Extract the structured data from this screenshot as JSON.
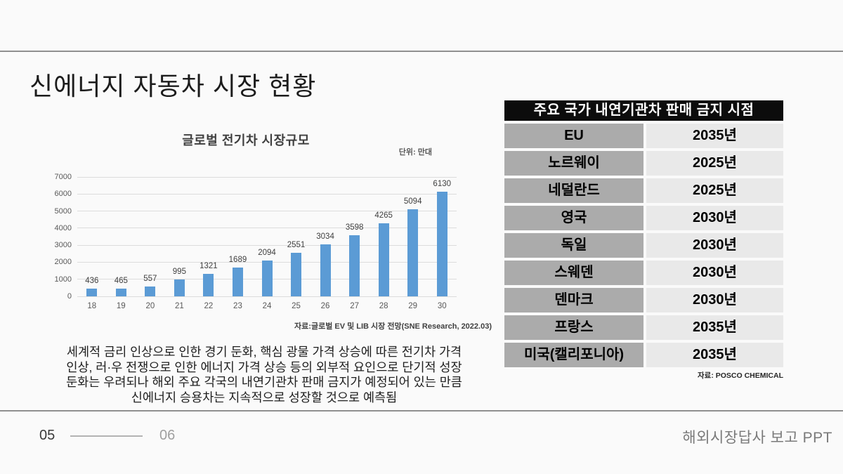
{
  "slide": {
    "title": "신에너지 자동차 시장 현황",
    "footer": {
      "page_current": "05",
      "page_total": "06",
      "right_text": "해외시장답사 보고 PPT"
    }
  },
  "chart_data": {
    "type": "bar",
    "title": "글로벌 전기차 시장규모",
    "unit_label": "단위: 만대",
    "categories": [
      "18",
      "19",
      "20",
      "21",
      "22",
      "23",
      "24",
      "25",
      "26",
      "27",
      "28",
      "29",
      "30"
    ],
    "values": [
      436,
      465,
      557,
      995,
      1321,
      1689,
      2094,
      2551,
      3034,
      3598,
      4265,
      5094,
      6130
    ],
    "ylim": [
      0,
      7000
    ],
    "ytick_step": 1000,
    "grid": true,
    "legend": "none",
    "bar_color": "#5B9BD5",
    "source": "자료:글로벌 EV 및 LIB 시장 전망(SNE Research, 2022.03)"
  },
  "body_text": {
    "lines": [
      "세계적 금리 인상으로 인한 경기 둔화, 핵심 광물 가격 상승에 따른 전기차 가격",
      "인상, 러·우 전쟁으로 인한 에너지 가격 상승 등의 외부적 요인으로 단기적 성장",
      "둔화는 우려되나 해외 주요 각국의 내연기관차 판매 금지가 예정되어 있는 만큼",
      "신에너지 승용차는 지속적으로 성장할 것으로 예측됨"
    ]
  },
  "ban_table": {
    "title": "주요 국가 내연기관차 판매 금지 시점",
    "rows": [
      {
        "country": "EU",
        "year": "2035년"
      },
      {
        "country": "노르웨이",
        "year": "2025년"
      },
      {
        "country": "네덜란드",
        "year": "2025년"
      },
      {
        "country": "영국",
        "year": "2030년"
      },
      {
        "country": "독일",
        "year": "2030년"
      },
      {
        "country": "스웨덴",
        "year": "2030년"
      },
      {
        "country": "덴마크",
        "year": "2030년"
      },
      {
        "country": "프랑스",
        "year": "2035년"
      },
      {
        "country": "미국(캘리포니아)",
        "year": "2035년"
      }
    ],
    "source": "자료: POSCO CHEMICAL",
    "colors": {
      "header_bg": "#0c0c0c",
      "header_text": "#ffffff",
      "country_bg": "#ababab",
      "year_bg": "#e9e9e9"
    }
  }
}
